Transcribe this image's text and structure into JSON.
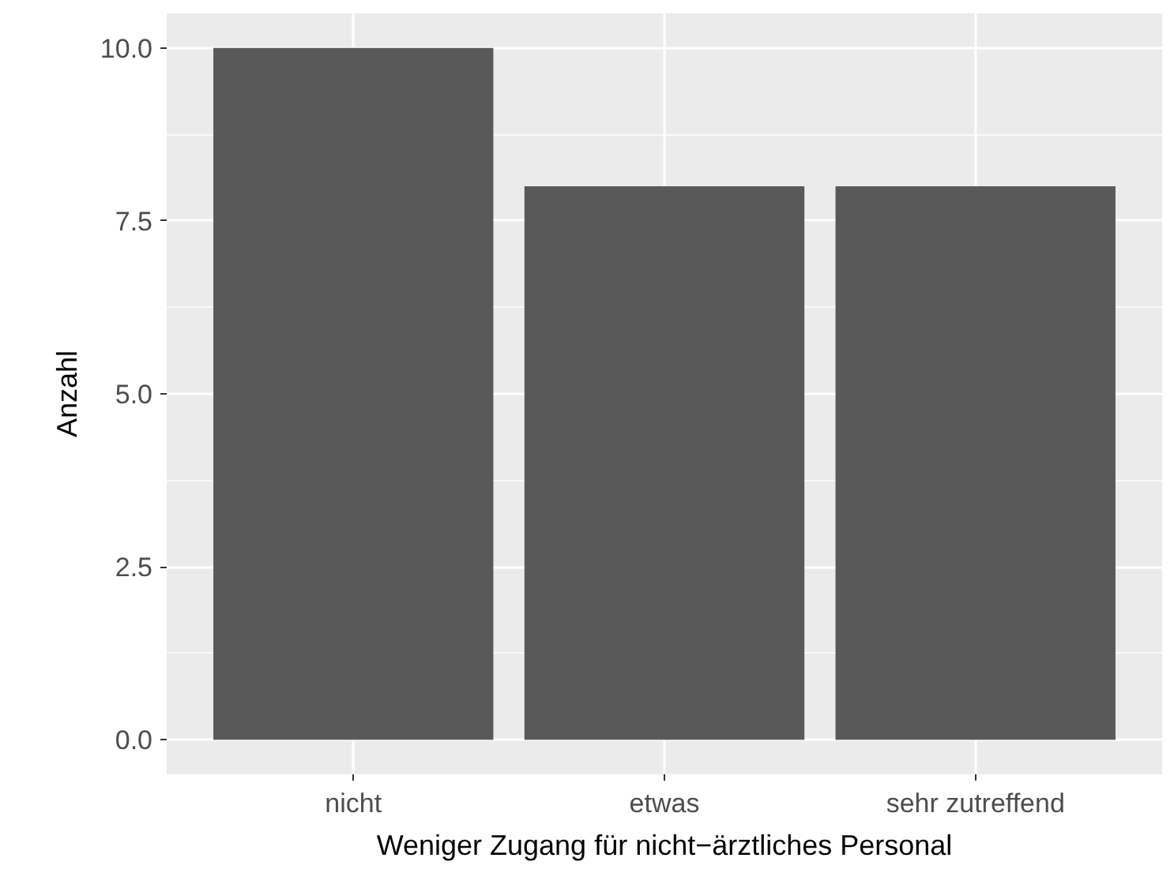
{
  "chart_data": {
    "type": "bar",
    "xlabel": "Weniger Zugang für nicht−ärztliches Personal",
    "ylabel": "Anzahl",
    "categories": [
      "nicht",
      "etwas",
      "sehr zutreffend"
    ],
    "values": [
      10,
      8,
      8
    ],
    "color": "#595959",
    "ylim": [
      -0.5,
      10.5
    ],
    "yticks": [
      {
        "value": 0,
        "label": "0.0"
      },
      {
        "value": 2.5,
        "label": "2.5"
      },
      {
        "value": 5,
        "label": "5.0"
      },
      {
        "value": 7.5,
        "label": "7.5"
      },
      {
        "value": 10,
        "label": "10.0"
      }
    ],
    "grid": true
  }
}
